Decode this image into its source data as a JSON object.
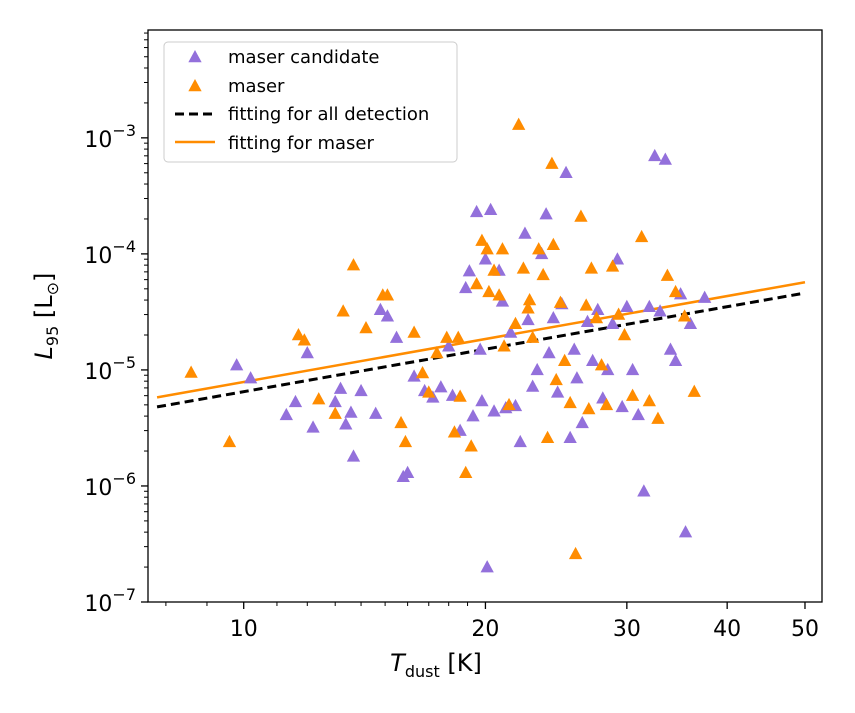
{
  "chart_data": {
    "type": "scatter",
    "xscale": "log",
    "yscale": "log",
    "xlim": [
      7.6,
      52.5
    ],
    "ylim": [
      1e-07,
      0.0085
    ],
    "xlabel": {
      "main": "T",
      "sub": "dust",
      "unit": " [K]"
    },
    "ylabel": {
      "main": "L",
      "sub": "95",
      "unit": " [L",
      "unit_sub": "⊙",
      "unit_close": "]"
    },
    "xticks": [
      {
        "value": 10,
        "label": "10"
      },
      {
        "value": 20,
        "label": "20"
      },
      {
        "value": 30,
        "label": "30"
      },
      {
        "value": 40,
        "label": "40"
      },
      {
        "value": 50,
        "label": "50"
      }
    ],
    "yticks": [
      {
        "value": 1e-07,
        "base": "10",
        "exp": "−7"
      },
      {
        "value": 1e-06,
        "base": "10",
        "exp": "−6"
      },
      {
        "value": 1e-05,
        "base": "10",
        "exp": "−5"
      },
      {
        "value": 0.0001,
        "base": "10",
        "exp": "−4"
      },
      {
        "value": 0.001,
        "base": "10",
        "exp": "−3"
      }
    ],
    "legend_position": "top-left",
    "colors": {
      "candidate": "#9370DB",
      "maser": "#FF8C00",
      "fit_all": "#000000",
      "fit_maser": "#FF8C00"
    },
    "series": [
      {
        "name": "maser candidate",
        "marker": "triangle",
        "points": [
          [
            9.8,
            1.1e-05
          ],
          [
            10.2,
            8.5e-06
          ],
          [
            11.3,
            4.1e-06
          ],
          [
            11.6,
            5.3e-06
          ],
          [
            12.0,
            1.4e-05
          ],
          [
            12.2,
            3.2e-06
          ],
          [
            13.0,
            5.3e-06
          ],
          [
            13.2,
            6.9e-06
          ],
          [
            13.4,
            3.4e-06
          ],
          [
            13.6,
            4.3e-06
          ],
          [
            13.7,
            1.8e-06
          ],
          [
            14.0,
            6.6e-06
          ],
          [
            14.6,
            4.2e-06
          ],
          [
            14.8,
            3.3e-05
          ],
          [
            15.1,
            2.9e-05
          ],
          [
            15.5,
            1.9e-05
          ],
          [
            15.8,
            1.2e-06
          ],
          [
            16.0,
            1.3e-06
          ],
          [
            16.3,
            8.8e-06
          ],
          [
            16.8,
            6.6e-06
          ],
          [
            17.2,
            5.8e-06
          ],
          [
            17.6,
            7.1e-06
          ],
          [
            18.0,
            1.6e-05
          ],
          [
            18.2,
            6e-06
          ],
          [
            18.6,
            3e-06
          ],
          [
            18.9,
            5.1e-05
          ],
          [
            19.1,
            7.1e-05
          ],
          [
            19.3,
            4e-06
          ],
          [
            19.5,
            0.00023
          ],
          [
            19.7,
            1.5e-05
          ],
          [
            19.8,
            5.4e-06
          ],
          [
            20.0,
            9e-05
          ],
          [
            20.1,
            2e-07
          ],
          [
            20.3,
            0.00024
          ],
          [
            20.5,
            4.4e-06
          ],
          [
            20.8,
            7.2e-05
          ],
          [
            21.0,
            3.9e-05
          ],
          [
            21.2,
            4.7e-06
          ],
          [
            21.5,
            2.1e-05
          ],
          [
            21.8,
            4.9e-06
          ],
          [
            22.1,
            2.4e-06
          ],
          [
            22.4,
            0.00015
          ],
          [
            22.6,
            2.7e-05
          ],
          [
            22.9,
            7.2e-06
          ],
          [
            23.2,
            1e-05
          ],
          [
            23.5,
            0.0001
          ],
          [
            23.8,
            0.00022
          ],
          [
            24.0,
            1.4e-05
          ],
          [
            24.3,
            2.8e-05
          ],
          [
            24.6,
            6.4e-06
          ],
          [
            24.9,
            3.7e-05
          ],
          [
            25.2,
            0.0005
          ],
          [
            25.5,
            2.6e-06
          ],
          [
            25.8,
            1.5e-05
          ],
          [
            26.0,
            8.5e-06
          ],
          [
            26.4,
            3.5e-06
          ],
          [
            26.8,
            2.6e-05
          ],
          [
            27.2,
            1.2e-05
          ],
          [
            27.6,
            3.3e-05
          ],
          [
            28.0,
            5.7e-06
          ],
          [
            28.4,
            1e-05
          ],
          [
            28.8,
            2.5e-05
          ],
          [
            29.2,
            9e-05
          ],
          [
            29.6,
            4.8e-06
          ],
          [
            30.0,
            3.5e-05
          ],
          [
            30.5,
            1e-05
          ],
          [
            31.0,
            4.1e-06
          ],
          [
            31.5,
            9e-07
          ],
          [
            32.0,
            3.5e-05
          ],
          [
            32.5,
            0.0007
          ],
          [
            33.0,
            3.2e-05
          ],
          [
            33.5,
            0.00065
          ],
          [
            34.0,
            1.5e-05
          ],
          [
            34.5,
            1.2e-05
          ],
          [
            35.0,
            4.5e-05
          ],
          [
            35.5,
            4e-07
          ],
          [
            36.0,
            2.5e-05
          ],
          [
            37.5,
            4.2e-05
          ]
        ]
      },
      {
        "name": "maser",
        "marker": "triangle",
        "points": [
          [
            8.6,
            9.5e-06
          ],
          [
            9.6,
            2.4e-06
          ],
          [
            11.7,
            2e-05
          ],
          [
            11.9,
            1.8e-05
          ],
          [
            12.4,
            5.6e-06
          ],
          [
            13.0,
            4.2e-06
          ],
          [
            13.3,
            3.2e-05
          ],
          [
            13.7,
            8e-05
          ],
          [
            14.2,
            2.3e-05
          ],
          [
            14.9,
            4.4e-05
          ],
          [
            15.1,
            4.4e-05
          ],
          [
            15.7,
            3.5e-06
          ],
          [
            15.9,
            2.4e-06
          ],
          [
            16.3,
            2.1e-05
          ],
          [
            16.7,
            9.4e-06
          ],
          [
            17.0,
            6.4e-06
          ],
          [
            17.4,
            1.4e-05
          ],
          [
            17.9,
            1.9e-05
          ],
          [
            18.3,
            2.9e-06
          ],
          [
            18.6,
            5.9e-06
          ],
          [
            18.9,
            1.3e-06
          ],
          [
            19.2,
            2.2e-06
          ],
          [
            19.5,
            5.5e-05
          ],
          [
            19.8,
            0.00013
          ],
          [
            20.1,
            0.00011
          ],
          [
            20.5,
            7.2e-05
          ],
          [
            20.8,
            4.4e-05
          ],
          [
            21.1,
            1.6e-05
          ],
          [
            21.4,
            5e-06
          ],
          [
            21.8,
            2.5e-05
          ],
          [
            22.0,
            0.0013
          ],
          [
            22.3,
            7.5e-05
          ],
          [
            22.6,
            3.4e-05
          ],
          [
            22.9,
            1.9e-05
          ],
          [
            23.3,
            0.00011
          ],
          [
            23.6,
            6.6e-05
          ],
          [
            23.9,
            2.6e-06
          ],
          [
            24.2,
            0.0006
          ],
          [
            24.5,
            8.2e-06
          ],
          [
            24.8,
            3.8e-05
          ],
          [
            25.1,
            1.2e-05
          ],
          [
            25.5,
            5.2e-06
          ],
          [
            25.9,
            2.6e-07
          ],
          [
            26.3,
            0.00021
          ],
          [
            26.7,
            3.6e-05
          ],
          [
            27.1,
            7.5e-05
          ],
          [
            27.5,
            2.8e-05
          ],
          [
            27.9,
            1.1e-05
          ],
          [
            28.3,
            5e-06
          ],
          [
            28.8,
            7.8e-05
          ],
          [
            29.3,
            3e-05
          ],
          [
            29.8,
            2e-05
          ],
          [
            30.5,
            6e-06
          ],
          [
            31.3,
            0.00014
          ],
          [
            32.0,
            5.4e-06
          ],
          [
            32.8,
            3.8e-06
          ],
          [
            33.7,
            6.5e-05
          ],
          [
            34.5,
            4.7e-05
          ],
          [
            35.4,
            2.9e-05
          ],
          [
            36.4,
            6.5e-06
          ],
          [
            21.0,
            0.00011
          ],
          [
            22.7,
            4e-05
          ],
          [
            24.3,
            0.00012
          ],
          [
            26.9,
            4.6e-06
          ],
          [
            20.2,
            4.7e-05
          ],
          [
            18.5,
            1.9e-05
          ]
        ]
      }
    ],
    "lines": [
      {
        "name": "fitting for all detection",
        "style": "dashed",
        "from": [
          7.8,
          4.8e-06
        ],
        "to": [
          50.0,
          4.6e-05
        ]
      },
      {
        "name": "fitting for maser",
        "style": "solid",
        "from": [
          7.8,
          5.8e-06
        ],
        "to": [
          50.0,
          5.7e-05
        ]
      }
    ],
    "legend": [
      {
        "label": "maser candidate",
        "kind": "candidate"
      },
      {
        "label": "maser",
        "kind": "maser"
      },
      {
        "label": "fitting for all detection",
        "kind": "fit_all"
      },
      {
        "label": "fitting for maser",
        "kind": "fit_maser"
      }
    ]
  }
}
